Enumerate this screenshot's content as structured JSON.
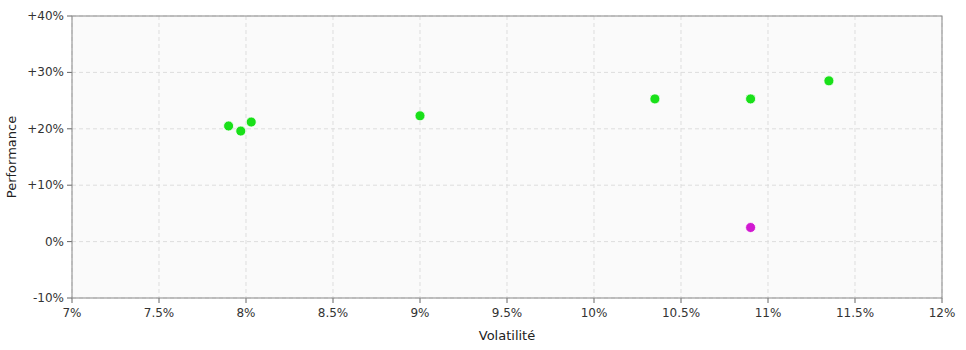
{
  "chart_data": {
    "type": "scatter",
    "xlabel": "Volatilité",
    "ylabel": "Performance",
    "xlim": [
      0.07,
      0.12
    ],
    "ylim": [
      -0.1,
      0.4
    ],
    "xticks": [
      {
        "value": 0.07,
        "label": "7%"
      },
      {
        "value": 0.075,
        "label": "7.5%"
      },
      {
        "value": 0.08,
        "label": "8%"
      },
      {
        "value": 0.085,
        "label": "8.5%"
      },
      {
        "value": 0.09,
        "label": "9%"
      },
      {
        "value": 0.095,
        "label": "9.5%"
      },
      {
        "value": 0.1,
        "label": "10%"
      },
      {
        "value": 0.105,
        "label": "10.5%"
      },
      {
        "value": 0.11,
        "label": "11%"
      },
      {
        "value": 0.115,
        "label": "11.5%"
      },
      {
        "value": 0.12,
        "label": "12%"
      }
    ],
    "yticks": [
      {
        "value": -0.1,
        "label": "-10%"
      },
      {
        "value": 0.0,
        "label": "0%"
      },
      {
        "value": 0.1,
        "label": "+10%"
      },
      {
        "value": 0.2,
        "label": "+20%"
      },
      {
        "value": 0.3,
        "label": "+30%"
      },
      {
        "value": 0.4,
        "label": "+40%"
      }
    ],
    "grid": true,
    "series": [
      {
        "color": "#00dd00",
        "x": [
          0.079,
          0.0803,
          0.0797,
          0.09,
          0.1035,
          0.109,
          0.1135
        ],
        "values": [
          0.205,
          0.212,
          0.196,
          0.223,
          0.253,
          0.253,
          0.285
        ]
      },
      {
        "color": "#cc00cc",
        "x": [
          0.109
        ],
        "values": [
          0.025
        ]
      }
    ]
  }
}
